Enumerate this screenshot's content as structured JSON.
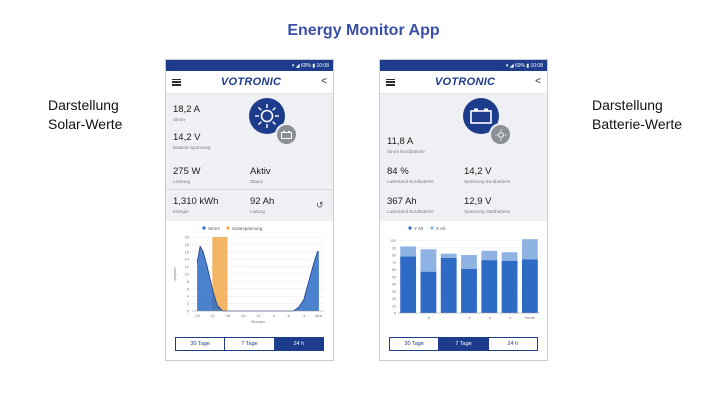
{
  "page_title": "Energy Monitor App",
  "left_caption": [
    "Darstellung",
    "Solar-Werte"
  ],
  "right_caption": [
    "Darstellung",
    "Batterie-Werte"
  ],
  "status_bar": "▾ ◢ 69% ▮ 10:08",
  "brand": "VOTRONIC",
  "solar_screen": {
    "readings": [
      {
        "value": "18,2 A",
        "label": "Strom"
      },
      {
        "value": "14,2 V",
        "label": "Batterie-Spannung"
      },
      {
        "value": "275 W",
        "label": "Leistung"
      },
      {
        "value": "Aktiv",
        "label": "Status"
      },
      {
        "value": "1,310 kWh",
        "label": "Energie"
      },
      {
        "value": "92 Ah",
        "label": "Ladung"
      }
    ],
    "chart": {
      "legend": [
        "Strom",
        "Solarspannung"
      ],
      "colors": {
        "current": "#2d6bc4",
        "voltage": "#f0a94a"
      },
      "x_ticks": [
        "-24",
        "-21",
        "-18",
        "-15",
        "-12",
        "-9",
        "-6",
        "-3",
        "jetzt"
      ],
      "xlabel": "Stunden",
      "ylabel": "Ampere",
      "y_ticks": [
        "20",
        "18",
        "16",
        "14",
        "12",
        "10",
        "8",
        "6",
        "4",
        "2",
        "0"
      ],
      "series_current": [
        [
          -24,
          13
        ],
        [
          -23.4,
          17.5
        ],
        [
          -22.8,
          16
        ],
        [
          -22,
          12
        ],
        [
          -21.5,
          9
        ],
        [
          -20.8,
          5
        ],
        [
          -20,
          1.5
        ],
        [
          -19,
          0
        ],
        [
          -5,
          0
        ],
        [
          -4,
          1
        ],
        [
          -3,
          3
        ],
        [
          -2,
          8
        ],
        [
          -1,
          13
        ],
        [
          -0.3,
          16
        ],
        [
          0,
          16
        ]
      ],
      "voltage_window": [
        -21,
        -18
      ]
    },
    "tabs": [
      "30 Tage",
      "7 Tage",
      "24 h"
    ],
    "active_tab": "24 h"
  },
  "battery_screen": {
    "readings": [
      {
        "value": "11,8 A",
        "label": "Strom Bordbatterie"
      },
      {
        "value": "84 %",
        "label": "Ladestand Bordbatterie"
      },
      {
        "value": "14,2 V",
        "label": "Spannung Bordbatterie"
      },
      {
        "value": "367 Ah",
        "label": "Ladestand Bordbatterie"
      },
      {
        "value": "12,9 V",
        "label": "Spannung Startbatterie"
      }
    ],
    "chart": {
      "legend": [
        "Y Ah",
        "X Ah"
      ],
      "colors": {
        "dark": "#2d6bc4",
        "light": "#8fb3e3"
      },
      "x_ticks": [
        "-6",
        "-4",
        "-3",
        "-1",
        "Heute"
      ],
      "y_ticks": [
        "100",
        "90",
        "80",
        "70",
        "60",
        "50",
        "40",
        "30",
        "20",
        "10",
        "0"
      ],
      "bars": [
        {
          "low": 78,
          "high": 92
        },
        {
          "low": 57,
          "high": 88
        },
        {
          "low": 76,
          "high": 82
        },
        {
          "low": 61,
          "high": 80
        },
        {
          "low": 73,
          "high": 86
        },
        {
          "low": 72,
          "high": 84
        },
        {
          "low": 74,
          "high": 102
        }
      ],
      "ylim": [
        0,
        100
      ]
    },
    "tabs": [
      "30 Tage",
      "7 Tage",
      "24 h"
    ],
    "active_tab": "7 Tage"
  }
}
